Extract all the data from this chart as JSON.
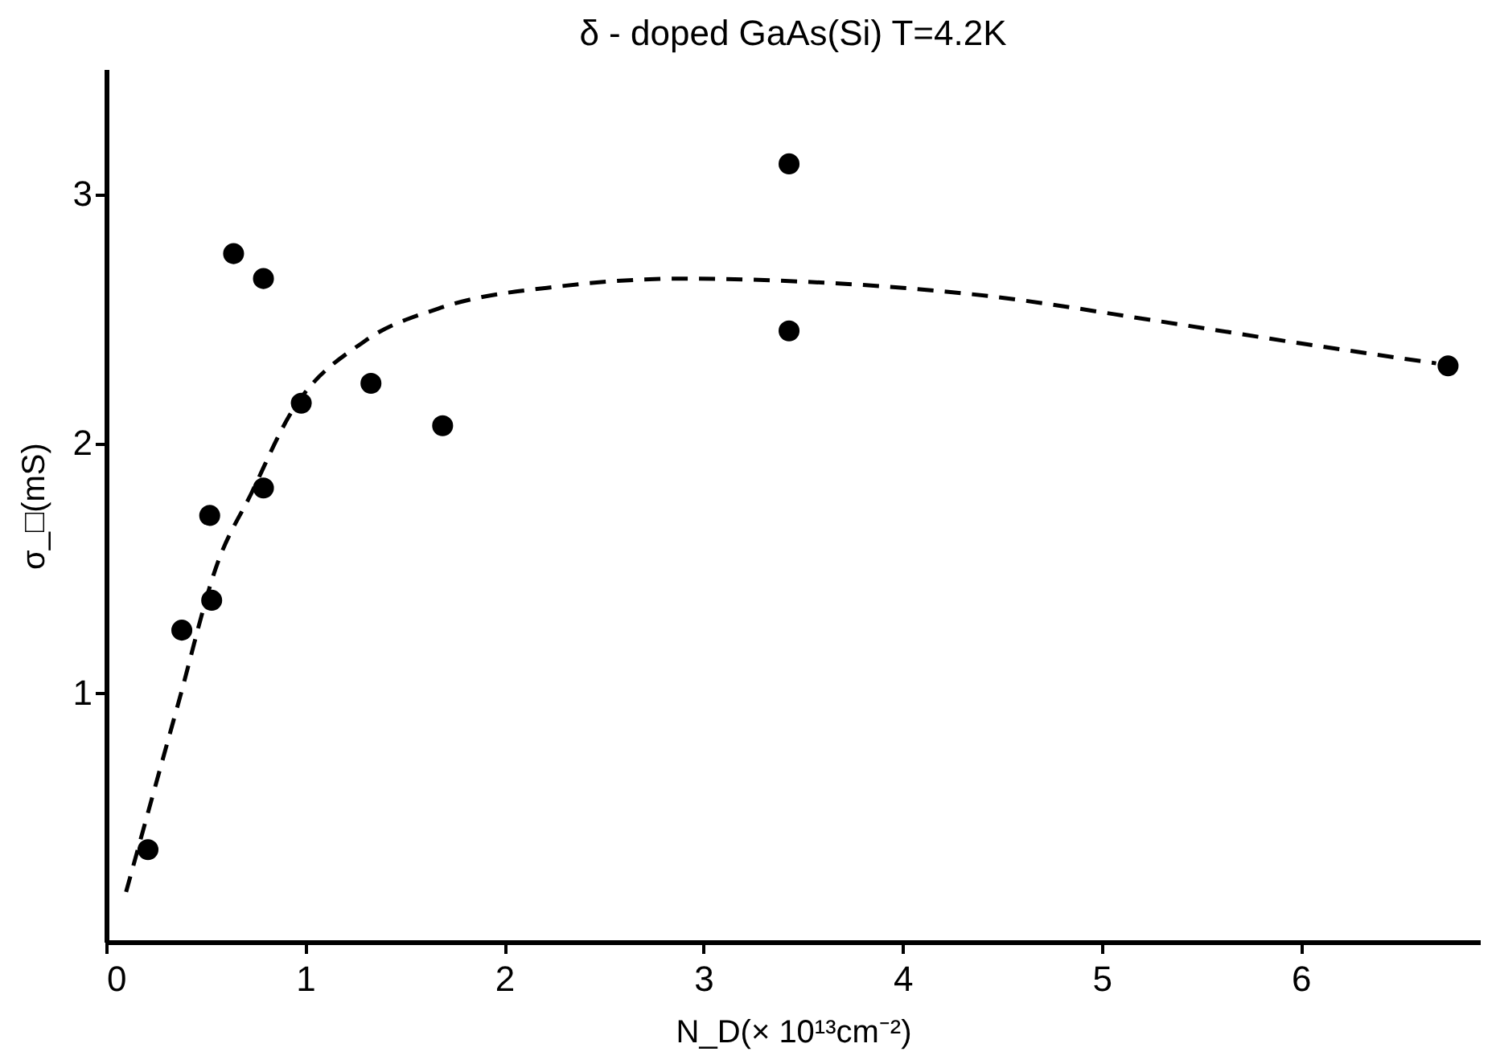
{
  "chart_data": {
    "type": "scatter",
    "title": "δ - doped GaAs(Si) T=4.2K",
    "xlabel": "N_D(× 10¹³cm⁻²)",
    "ylabel": "σ_□(mS)",
    "xlim": [
      0,
      6.9
    ],
    "ylim": [
      0,
      3.5
    ],
    "xticks": [
      0,
      1,
      2,
      3,
      4,
      5,
      6
    ],
    "yticks": [
      1,
      2,
      3
    ],
    "grid": false,
    "series": [
      {
        "color": "#000000",
        "marker": "circle",
        "x": [
          0.21,
          0.38,
          0.52,
          0.53,
          0.64,
          0.79,
          0.79,
          0.98,
          1.33,
          1.69,
          3.43,
          3.43,
          6.74
        ],
        "values": [
          0.37,
          1.25,
          1.71,
          1.37,
          2.76,
          2.66,
          1.82,
          2.16,
          2.24,
          2.07,
          3.12,
          2.45,
          2.31
        ]
      },
      {
        "type": "line",
        "color": "#000000",
        "line_style": "dashed",
        "marker": "none",
        "x": [
          0.1,
          0.36,
          0.56,
          0.73,
          0.92,
          1.3,
          1.67,
          2.29,
          2.92,
          3.43,
          4.43,
          5.28,
          6.0,
          6.68
        ],
        "values": [
          0.2,
          0.95,
          1.52,
          1.8,
          2.11,
          2.41,
          2.54,
          2.63,
          2.66,
          2.65,
          2.59,
          2.49,
          2.4,
          2.32
        ]
      }
    ]
  }
}
